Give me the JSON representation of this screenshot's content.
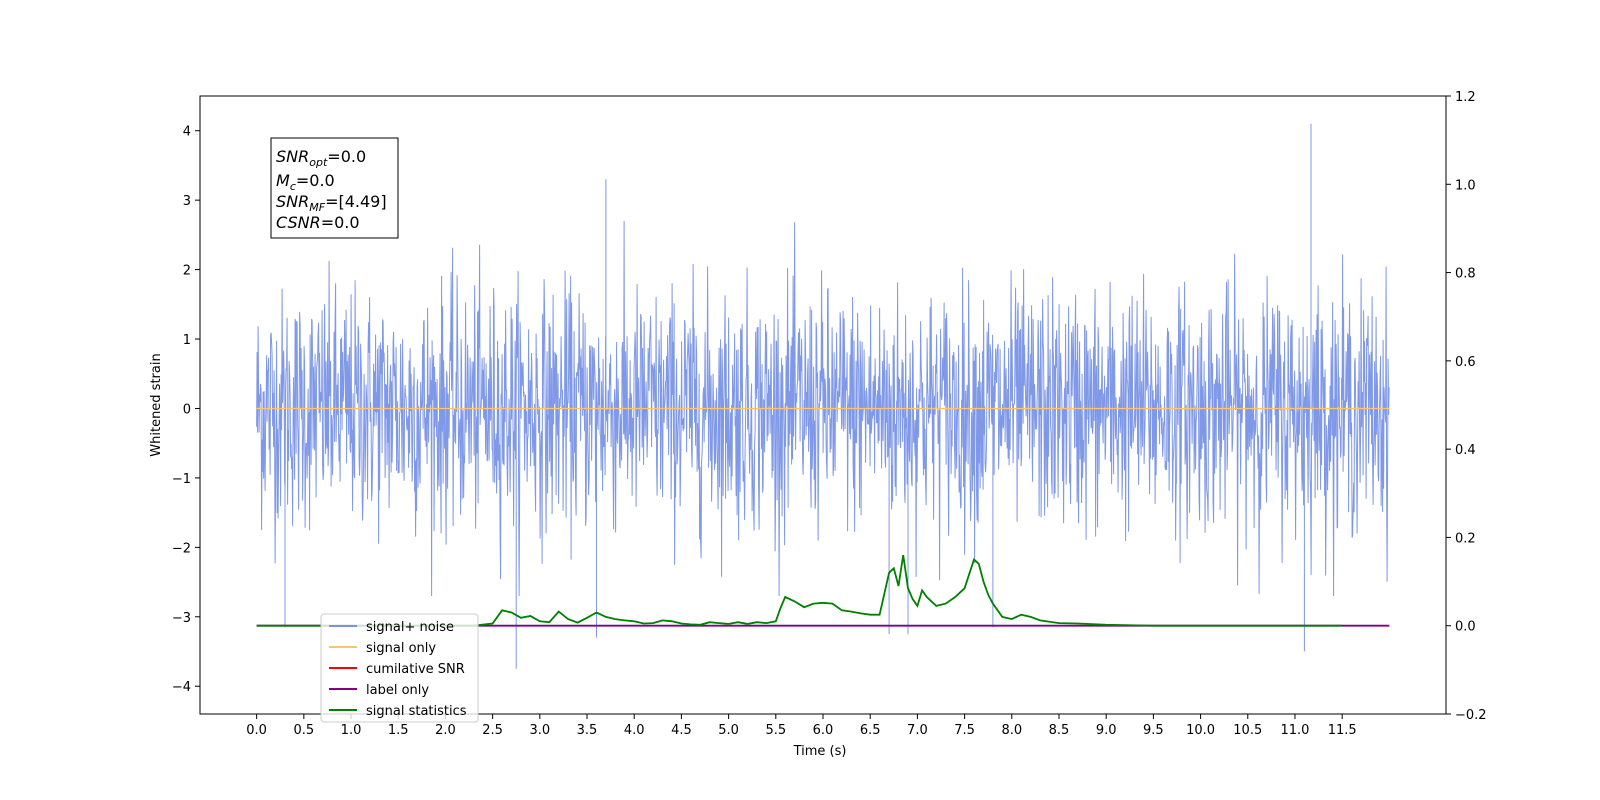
{
  "chart_data": {
    "type": "line",
    "title": "",
    "xlabel": "Time (s)",
    "ylabel": "Whitened strain",
    "xlim": [
      -0.6,
      12.6
    ],
    "ylim": [
      -4.4,
      4.5
    ],
    "y2lim": [
      -0.2,
      1.2
    ],
    "x_ticks": [
      "0.0",
      "0.5",
      "1.0",
      "1.5",
      "2.0",
      "2.5",
      "3.0",
      "3.5",
      "4.0",
      "4.5",
      "5.0",
      "5.5",
      "6.0",
      "6.5",
      "7.0",
      "7.5",
      "8.0",
      "8.5",
      "9.0",
      "9.5",
      "10.0",
      "10.5",
      "11.0",
      "11.5"
    ],
    "y_ticks": [
      "4",
      "3",
      "2",
      "1",
      "0",
      "−1",
      "−2",
      "−3",
      "−4"
    ],
    "y2_ticks": [
      "1.2",
      "1.0",
      "0.8",
      "0.6",
      "0.4",
      "0.2",
      "0.0",
      "−0.2"
    ],
    "textbox": {
      "snr_opt": {
        "base": "SNR",
        "sub": "opt",
        "value": "=0.0"
      },
      "mc": {
        "base": "M",
        "sub": "c",
        "value": "=0.0"
      },
      "snr_mf": {
        "base": "SNR",
        "sub": "MF",
        "value": "=[4.49]"
      },
      "csnr": {
        "base": "CSNR",
        "value": "=0.0"
      }
    },
    "legend": {
      "placement": "lower-left",
      "entries": [
        {
          "label": "signal+ noise",
          "color": "#7892e6"
        },
        {
          "label": "signal only",
          "color": "#ffc566"
        },
        {
          "label": "cumilative SNR",
          "color": "#ff0000"
        },
        {
          "label": "label only",
          "color": "#800080"
        },
        {
          "label": "signal statistics",
          "color": "#008000"
        }
      ]
    },
    "series": [
      {
        "name": "signal+ noise",
        "axis": "left",
        "color": "#7892e6",
        "description_range": [
          -2.0,
          2.0
        ],
        "x_range": [
          0.0,
          12.0
        ],
        "notable_peaks": [
          {
            "x": 3.7,
            "y": 3.3
          },
          {
            "x": 11.17,
            "y": 4.1
          },
          {
            "x": 2.75,
            "y": -3.75
          },
          {
            "x": 11.1,
            "y": -3.5
          },
          {
            "x": 0.3,
            "y": -3.15
          },
          {
            "x": 3.6,
            "y": -3.3
          },
          {
            "x": 6.7,
            "y": -3.25
          },
          {
            "x": 6.9,
            "y": -3.25
          },
          {
            "x": 7.8,
            "y": -3.15
          }
        ]
      },
      {
        "name": "signal only",
        "axis": "left",
        "color": "#ffc566",
        "x": [
          0.0,
          12.0
        ],
        "y": [
          0.0,
          0.0
        ]
      },
      {
        "name": "label only",
        "axis": "right",
        "color": "#800080",
        "x": [
          0.0,
          12.0
        ],
        "y": [
          0.0,
          0.0
        ]
      },
      {
        "name": "signal statistics",
        "axis": "right",
        "color": "#008000",
        "x": [
          0.0,
          2.0,
          2.3,
          2.5,
          2.6,
          2.7,
          2.8,
          2.9,
          3.0,
          3.1,
          3.2,
          3.3,
          3.4,
          3.5,
          3.6,
          3.7,
          3.8,
          3.9,
          4.0,
          4.1,
          4.2,
          4.3,
          4.4,
          4.5,
          4.6,
          4.7,
          4.8,
          4.9,
          5.0,
          5.1,
          5.2,
          5.3,
          5.4,
          5.5,
          5.55,
          5.6,
          5.7,
          5.8,
          5.9,
          6.0,
          6.1,
          6.2,
          6.3,
          6.4,
          6.5,
          6.6,
          6.7,
          6.75,
          6.8,
          6.85,
          6.9,
          6.95,
          7.0,
          7.05,
          7.1,
          7.2,
          7.3,
          7.4,
          7.5,
          7.6,
          7.65,
          7.7,
          7.75,
          7.8,
          7.9,
          8.0,
          8.1,
          8.2,
          8.3,
          8.5,
          8.7,
          9.0,
          9.5,
          10.0,
          11.0,
          11.5
        ],
        "y": [
          0.0,
          0.0,
          0.0,
          0.005,
          0.035,
          0.03,
          0.018,
          0.022,
          0.01,
          0.008,
          0.032,
          0.015,
          0.007,
          0.018,
          0.03,
          0.02,
          0.015,
          0.012,
          0.01,
          0.005,
          0.006,
          0.012,
          0.01,
          0.005,
          0.003,
          0.002,
          0.008,
          0.006,
          0.004,
          0.008,
          0.004,
          0.008,
          0.006,
          0.01,
          0.04,
          0.065,
          0.055,
          0.042,
          0.05,
          0.052,
          0.05,
          0.035,
          0.032,
          0.028,
          0.025,
          0.025,
          0.12,
          0.13,
          0.09,
          0.16,
          0.085,
          0.06,
          0.045,
          0.08,
          0.065,
          0.045,
          0.05,
          0.065,
          0.085,
          0.15,
          0.14,
          0.1,
          0.07,
          0.05,
          0.02,
          0.015,
          0.025,
          0.02,
          0.012,
          0.006,
          0.005,
          0.002,
          0.0,
          0.0,
          0.0,
          0.0
        ]
      }
    ]
  }
}
